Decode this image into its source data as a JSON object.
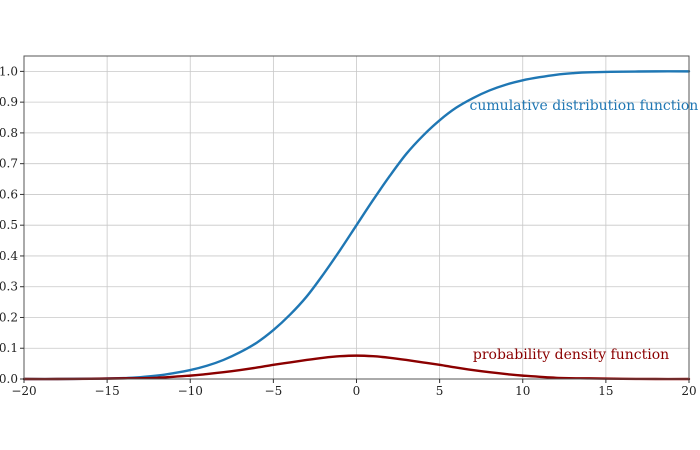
{
  "chart_data": {
    "type": "line",
    "title": "",
    "xlabel": "",
    "ylabel": "",
    "xlim": [
      -20,
      20
    ],
    "ylim": [
      0,
      1.05
    ],
    "x_ticks": [
      -20,
      -15,
      -10,
      -5,
      0,
      5,
      10,
      15,
      20
    ],
    "x_tick_labels": [
      "−20",
      "−15",
      "−10",
      "−5",
      "0",
      "5",
      "10",
      "15",
      "20"
    ],
    "y_ticks": [
      0,
      0.1,
      0.2,
      0.3,
      0.4,
      0.5,
      0.6,
      0.7,
      0.8,
      0.9,
      1.0
    ],
    "y_tick_labels": [
      "0.0",
      "0.1",
      "0.2",
      "0.3",
      "0.4",
      "0.5",
      "0.6",
      "0.7",
      "0.8",
      "0.9",
      "1.0"
    ],
    "grid": true,
    "legend": "none",
    "series": [
      {
        "name": "cumulative distribution function",
        "color": "#1f77b4",
        "x": [
          -20,
          -18,
          -16,
          -14,
          -13,
          -12,
          -11,
          -10,
          -9,
          -8,
          -7,
          -6,
          -5,
          -4,
          -3,
          -2,
          -1,
          0,
          1,
          2,
          3,
          4,
          5,
          6,
          7,
          8,
          9,
          10,
          11,
          12,
          13,
          14,
          16,
          18,
          20
        ],
        "y": [
          0.0,
          0.0,
          0.001,
          0.003,
          0.006,
          0.011,
          0.019,
          0.029,
          0.043,
          0.062,
          0.087,
          0.118,
          0.159,
          0.209,
          0.268,
          0.34,
          0.418,
          0.5,
          0.582,
          0.66,
          0.732,
          0.791,
          0.841,
          0.882,
          0.913,
          0.938,
          0.957,
          0.971,
          0.981,
          0.989,
          0.994,
          0.997,
          0.999,
          1.0,
          1.0
        ]
      },
      {
        "name": "probability density function",
        "color": "#8b0000",
        "x": [
          -20,
          -18,
          -16,
          -14,
          -12,
          -10,
          -9,
          -8,
          -7,
          -6,
          -5,
          -4,
          -3,
          -2,
          -1,
          0,
          1,
          2,
          3,
          4,
          5,
          6,
          7,
          8,
          9,
          10,
          12,
          14,
          16,
          18,
          20
        ],
        "y": [
          0.0,
          0.0,
          0.0005,
          0.002,
          0.004,
          0.011,
          0.016,
          0.022,
          0.029,
          0.037,
          0.046,
          0.054,
          0.062,
          0.069,
          0.074,
          0.076,
          0.074,
          0.069,
          0.062,
          0.054,
          0.046,
          0.037,
          0.029,
          0.022,
          0.016,
          0.011,
          0.004,
          0.002,
          0.0005,
          0.0,
          0.0
        ]
      }
    ],
    "annotations": [
      {
        "text": "cumulative distribution function",
        "series": 0,
        "x": 6.8,
        "y": 0.875
      },
      {
        "text": "probability density function",
        "series": 1,
        "x": 7.0,
        "y": 0.065
      }
    ]
  }
}
